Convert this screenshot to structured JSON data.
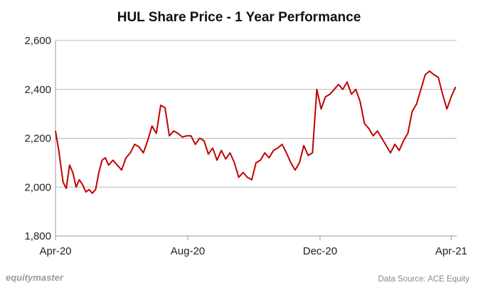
{
  "chart_data": {
    "type": "line",
    "title": "HUL Share Price - 1 Year Performance",
    "xlabel": "",
    "ylabel": "",
    "ylim": [
      1800,
      2600
    ],
    "y_ticks": [
      "1,800",
      "2,000",
      "2,200",
      "2,400",
      "2,600"
    ],
    "y_tick_values": [
      1800,
      2000,
      2200,
      2400,
      2600
    ],
    "x_ticks": [
      "Apr-20",
      "Aug-20",
      "Dec-20",
      "Apr-21"
    ],
    "x_tick_dates": [
      "2020-04-01",
      "2020-08-01",
      "2020-12-01",
      "2021-04-01"
    ],
    "xlim": [
      "2020-04-01",
      "2021-04-06"
    ],
    "grid": "horizontal",
    "legend": "none",
    "series": [
      {
        "color": "#c00000",
        "x": [
          "2020-04-01",
          "2020-04-04",
          "2020-04-08",
          "2020-04-11",
          "2020-04-14",
          "2020-04-17",
          "2020-04-20",
          "2020-04-23",
          "2020-04-26",
          "2020-04-29",
          "2020-05-02",
          "2020-05-05",
          "2020-05-08",
          "2020-05-11",
          "2020-05-14",
          "2020-05-17",
          "2020-05-20",
          "2020-05-24",
          "2020-05-28",
          "2020-06-01",
          "2020-06-05",
          "2020-06-09",
          "2020-06-13",
          "2020-06-17",
          "2020-06-21",
          "2020-06-25",
          "2020-06-29",
          "2020-07-03",
          "2020-07-07",
          "2020-07-11",
          "2020-07-15",
          "2020-07-19",
          "2020-07-23",
          "2020-07-27",
          "2020-07-31",
          "2020-08-04",
          "2020-08-08",
          "2020-08-12",
          "2020-08-16",
          "2020-08-20",
          "2020-08-24",
          "2020-08-28",
          "2020-09-01",
          "2020-09-05",
          "2020-09-09",
          "2020-09-13",
          "2020-09-17",
          "2020-09-21",
          "2020-09-25",
          "2020-09-29",
          "2020-10-03",
          "2020-10-07",
          "2020-10-11",
          "2020-10-15",
          "2020-10-19",
          "2020-10-23",
          "2020-10-27",
          "2020-10-31",
          "2020-11-04",
          "2020-11-08",
          "2020-11-12",
          "2020-11-16",
          "2020-11-20",
          "2020-11-24",
          "2020-11-28",
          "2020-12-02",
          "2020-12-06",
          "2020-12-10",
          "2020-12-14",
          "2020-12-18",
          "2020-12-22",
          "2020-12-26",
          "2020-12-30",
          "2021-01-03",
          "2021-01-07",
          "2021-01-11",
          "2021-01-15",
          "2021-01-19",
          "2021-01-23",
          "2021-01-27",
          "2021-01-31",
          "2021-02-04",
          "2021-02-08",
          "2021-02-12",
          "2021-02-16",
          "2021-02-20",
          "2021-02-24",
          "2021-02-28",
          "2021-03-04",
          "2021-03-08",
          "2021-03-12",
          "2021-03-16",
          "2021-03-20",
          "2021-03-24",
          "2021-03-28",
          "2021-04-01",
          "2021-04-05"
        ],
        "values": [
          2230,
          2150,
          2020,
          1995,
          2090,
          2060,
          2000,
          2030,
          2010,
          1980,
          1990,
          1975,
          1990,
          2060,
          2110,
          2120,
          2090,
          2110,
          2090,
          2070,
          2120,
          2140,
          2175,
          2165,
          2140,
          2190,
          2250,
          2220,
          2335,
          2325,
          2210,
          2230,
          2220,
          2205,
          2210,
          2210,
          2175,
          2200,
          2190,
          2135,
          2160,
          2110,
          2150,
          2115,
          2140,
          2100,
          2040,
          2060,
          2040,
          2030,
          2100,
          2110,
          2140,
          2120,
          2150,
          2160,
          2175,
          2140,
          2100,
          2070,
          2100,
          2170,
          2130,
          2140,
          2400,
          2320,
          2370,
          2380,
          2400,
          2420,
          2400,
          2430,
          2380,
          2400,
          2350,
          2260,
          2240,
          2210,
          2230,
          2200,
          2170,
          2140,
          2175,
          2150,
          2190,
          2220,
          2310,
          2340,
          2400,
          2460,
          2475,
          2460,
          2450,
          2380,
          2320,
          2370,
          2410
        ]
      }
    ]
  },
  "footer": {
    "brand": "equitymaster",
    "source": "Data Source: ACE Equity"
  }
}
